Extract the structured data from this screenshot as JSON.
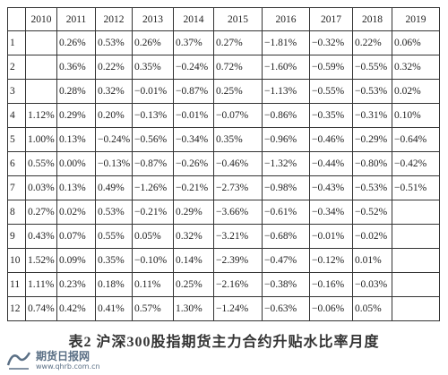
{
  "table": {
    "header": [
      "2010",
      "2011",
      "2012",
      "2013",
      "2014",
      "2015",
      "2016",
      "2017",
      "2018",
      "2019"
    ],
    "rows": [
      [
        "1",
        null,
        "0.26%",
        "0.53%",
        "0.26%",
        "0.37%",
        "0.27%",
        "−1.81%",
        "−0.32%",
        "0.22%",
        "0.06%"
      ],
      [
        "2",
        null,
        "0.36%",
        "0.22%",
        "0.35%",
        "−0.24%",
        "0.72%",
        "−1.60%",
        "−0.59%",
        "−0.55%",
        "0.32%"
      ],
      [
        "3",
        null,
        "0.28%",
        "0.32%",
        "−0.01%",
        "−0.87%",
        "0.25%",
        "−1.13%",
        "−0.55%",
        "−0.53%",
        "0.02%"
      ],
      [
        "4",
        "1.12%",
        "0.29%",
        "0.20%",
        "−0.13%",
        "−0.01%",
        "−0.07%",
        "−0.86%",
        "−0.35%",
        "−0.31%",
        "0.10%"
      ],
      [
        "5",
        "1.00%",
        "0.13%",
        "−0.24%",
        "−0.56%",
        "−0.34%",
        "0.35%",
        "−0.96%",
        "−0.46%",
        "−0.29%",
        "−0.64%"
      ],
      [
        "6",
        "0.55%",
        "0.00%",
        "−0.13%",
        "−0.87%",
        "−0.26%",
        "−0.46%",
        "−1.32%",
        "−0.44%",
        "−0.80%",
        "−0.42%"
      ],
      [
        "7",
        "0.03%",
        "0.13%",
        "0.49%",
        "−1.26%",
        "−0.21%",
        "−2.73%",
        "−0.98%",
        "−0.43%",
        "−0.53%",
        "−0.51%"
      ],
      [
        "8",
        "0.27%",
        "0.02%",
        "0.53%",
        "−0.21%",
        "0.29%",
        "−3.66%",
        "−0.61%",
        "−0.34%",
        "−0.52%",
        null
      ],
      [
        "9",
        "0.43%",
        "0.07%",
        "0.55%",
        "0.05%",
        "0.32%",
        "−3.21%",
        "−0.68%",
        "−0.01%",
        "−0.02%",
        null
      ],
      [
        "10",
        "1.52%",
        "0.09%",
        "0.35%",
        "−0.10%",
        "0.14%",
        "−2.39%",
        "−0.47%",
        "−0.12%",
        "0.01%",
        null
      ],
      [
        "11",
        "1.11%",
        "0.23%",
        "0.18%",
        "0.11%",
        "0.25%",
        "−2.16%",
        "−0.38%",
        "−0.16%",
        "−0.03%",
        null
      ],
      [
        "12",
        "0.74%",
        "0.42%",
        "0.41%",
        "0.57%",
        "1.30%",
        "−1.24%",
        "−0.63%",
        "−0.06%",
        "0.05%",
        null
      ]
    ]
  },
  "caption": "表2 沪深300股指期货主力合约升贴水比率月度",
  "watermark": {
    "name": "期货日报网",
    "url": "www.qhrb.com.cn"
  }
}
